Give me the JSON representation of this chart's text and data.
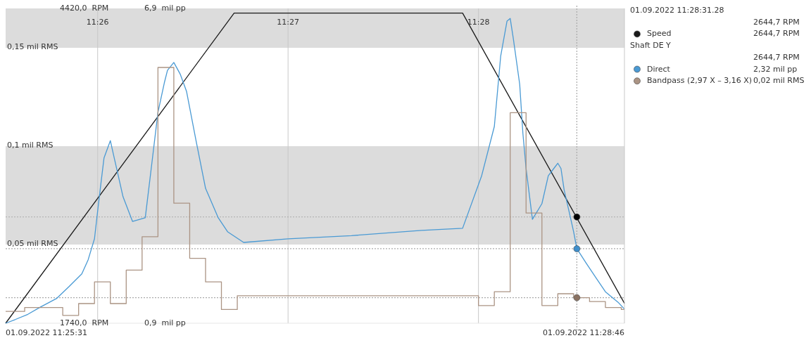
{
  "chart_data": {
    "type": "line",
    "xlim": [
      "2022-09-01T11:25:31",
      "2022-09-01T11:28:46"
    ],
    "xticks": [
      {
        "value": "2022-09-01T11:26",
        "label": "11:26"
      },
      {
        "value": "2022-09-01T11:27",
        "label": "11:27"
      },
      {
        "value": "2022-09-01T11:28",
        "label": "11:28"
      }
    ],
    "ylim": [
      1740,
      4420
    ],
    "yticks": [
      {
        "value": 1740,
        "label": "1740,0  RPM"
      },
      {
        "value": 4420,
        "label": "4420,0  RPM"
      }
    ],
    "y2lim": [
      0.9,
      6.9
    ],
    "y2ticks": [
      {
        "value": 0.9,
        "label": "0,9  mil pp"
      },
      {
        "value": 6.9,
        "label": "6,9  mil pp"
      }
    ],
    "y3lim": [
      0.01,
      0.17
    ],
    "y3ticks": [
      {
        "value": 0.05,
        "label": "0,05 mil RMS"
      },
      {
        "value": 0.1,
        "label": "0,1 mil RMS"
      },
      {
        "value": 0.15,
        "label": "0,15 mil RMS"
      }
    ],
    "grid": "x",
    "legend": "top right",
    "bands": [
      {
        "axis": "y3",
        "from": 0.15,
        "to": 0.17,
        "color": "#dcdcdc"
      },
      {
        "axis": "y3",
        "from": 0.05,
        "to": 0.1,
        "color": "#dcdcdc"
      }
    ],
    "ref_lines": [
      {
        "axis": "x",
        "value": "2022-09-01T11:28:31",
        "color": "#aaaaaa",
        "line_style": "dotted"
      },
      {
        "axis": "y",
        "value": 2644.7,
        "color": "#aaaaaa",
        "line_style": "dotted"
      },
      {
        "axis": "y2",
        "value": 2.32,
        "color": "#aaaaaa",
        "line_style": "dotted"
      },
      {
        "axis": "y3",
        "value": 0.023,
        "color": "#aaaaaa",
        "line_style": "dotted"
      }
    ],
    "line_style": "solid",
    "series": [
      {
        "name": "Speed",
        "color": "#1a1a1a",
        "type": "line",
        "axis": "y",
        "x": [
          "2022-09-01T11:25:31",
          "2022-09-01T11:26:43",
          "2022-09-01T11:27:55",
          "2022-09-01T11:28:46"
        ],
        "values": [
          1740,
          4380,
          4380,
          1910
        ]
      },
      {
        "name": "Direct",
        "color": "#4a9ad4",
        "type": "line",
        "axis": "y2",
        "x": [
          "2022-09-01T11:25:31",
          "2022-09-01T11:25:34",
          "2022-09-01T11:25:38",
          "2022-09-01T11:25:42",
          "2022-09-01T11:25:47",
          "2022-09-01T11:25:51",
          "2022-09-01T11:25:55",
          "2022-09-01T11:25:57",
          "2022-09-01T11:25:59",
          "2022-09-01T11:26:00",
          "2022-09-01T11:26:01",
          "2022-09-01T11:26:02",
          "2022-09-01T11:26:04",
          "2022-09-01T11:26:05",
          "2022-09-01T11:26:08",
          "2022-09-01T11:26:11",
          "2022-09-01T11:26:15",
          "2022-09-01T11:26:17",
          "2022-09-01T11:26:19",
          "2022-09-01T11:26:21",
          "2022-09-01T11:26:22",
          "2022-09-01T11:26:24",
          "2022-09-01T11:26:26",
          "2022-09-01T11:26:28",
          "2022-09-01T11:26:31",
          "2022-09-01T11:26:34",
          "2022-09-01T11:26:38",
          "2022-09-01T11:26:41",
          "2022-09-01T11:26:46",
          "2022-09-01T11:27:00",
          "2022-09-01T11:27:20",
          "2022-09-01T11:27:42",
          "2022-09-01T11:27:55",
          "2022-09-01T11:28:01",
          "2022-09-01T11:28:05",
          "2022-09-01T11:28:07",
          "2022-09-01T11:28:09",
          "2022-09-01T11:28:10",
          "2022-09-01T11:28:11",
          "2022-09-01T11:28:13",
          "2022-09-01T11:28:14",
          "2022-09-01T11:28:15",
          "2022-09-01T11:28:17",
          "2022-09-01T11:28:18",
          "2022-09-01T11:28:20",
          "2022-09-01T11:28:22",
          "2022-09-01T11:28:24",
          "2022-09-01T11:28:25",
          "2022-09-01T11:28:26",
          "2022-09-01T11:28:27",
          "2022-09-01T11:28:29",
          "2022-09-01T11:28:30",
          "2022-09-01T11:28:31",
          "2022-09-01T11:28:34",
          "2022-09-01T11:28:37",
          "2022-09-01T11:28:40",
          "2022-09-01T11:28:44",
          "2022-09-01T11:28:46"
        ],
        "values": [
          0.9,
          0.97,
          1.07,
          1.21,
          1.37,
          1.6,
          1.84,
          2.11,
          2.51,
          3.04,
          3.55,
          4.05,
          4.38,
          4.11,
          3.31,
          2.84,
          2.91,
          3.91,
          4.92,
          5.48,
          5.72,
          5.87,
          5.65,
          5.32,
          4.38,
          3.47,
          2.91,
          2.64,
          2.44,
          2.51,
          2.57,
          2.67,
          2.71,
          3.71,
          4.65,
          5.99,
          6.66,
          6.71,
          6.32,
          5.45,
          4.52,
          3.85,
          2.88,
          2.98,
          3.18,
          3.71,
          3.87,
          3.95,
          3.85,
          3.44,
          2.91,
          2.64,
          2.32,
          2.04,
          1.77,
          1.5,
          1.3,
          1.17
        ]
      },
      {
        "name": "Bandpass (2,97 X – 3,16 X)",
        "color": "#ab9484",
        "type": "step",
        "axis": "y3",
        "x": [
          "2022-09-01T11:25:31",
          "2022-09-01T11:25:37",
          "2022-09-01T11:25:49",
          "2022-09-01T11:25:54",
          "2022-09-01T11:25:59",
          "2022-09-01T11:26:04",
          "2022-09-01T11:26:09",
          "2022-09-01T11:26:14",
          "2022-09-01T11:26:19",
          "2022-09-01T11:26:24",
          "2022-09-01T11:26:29",
          "2022-09-01T11:26:34",
          "2022-09-01T11:26:39",
          "2022-09-01T11:26:44",
          "2022-09-01T11:28:00",
          "2022-09-01T11:28:05",
          "2022-09-01T11:28:10",
          "2022-09-01T11:28:15",
          "2022-09-01T11:28:20",
          "2022-09-01T11:28:25",
          "2022-09-01T11:28:30",
          "2022-09-01T11:28:35",
          "2022-09-01T11:28:40",
          "2022-09-01T11:28:45",
          "2022-09-01T11:28:46"
        ],
        "values": [
          0.016,
          0.018,
          0.014,
          0.02,
          0.031,
          0.02,
          0.037,
          0.054,
          0.14,
          0.071,
          0.043,
          0.031,
          0.017,
          0.024,
          0.019,
          0.026,
          0.117,
          0.066,
          0.019,
          0.025,
          0.023,
          0.021,
          0.018,
          0.017,
          0.017
        ]
      },
      {
        "color": "#000000",
        "type": "scatter",
        "marker": "circle",
        "axis": "y",
        "x": [
          "2022-09-01T11:28:31"
        ],
        "values": [
          2644.7
        ]
      },
      {
        "color": "#3f8fcc",
        "type": "scatter",
        "marker": "circle",
        "axis": "y2",
        "x": [
          "2022-09-01T11:28:31"
        ],
        "values": [
          2.32
        ]
      },
      {
        "color": "#8a7262",
        "type": "scatter",
        "marker": "circle",
        "axis": "y3",
        "x": [
          "2022-09-01T11:28:31"
        ],
        "values": [
          0.023
        ]
      }
    ],
    "annotations": [
      "01.09.2022 11:28:31.28",
      "2644,7 RPM",
      "2644,7 RPM",
      "Shaft DE Y",
      "2644,7 RPM",
      "2,32 mil pp",
      "0,02 mil RMS",
      "01.09.2022 11:25:31",
      "01.09.2022 11:28:46"
    ]
  }
}
